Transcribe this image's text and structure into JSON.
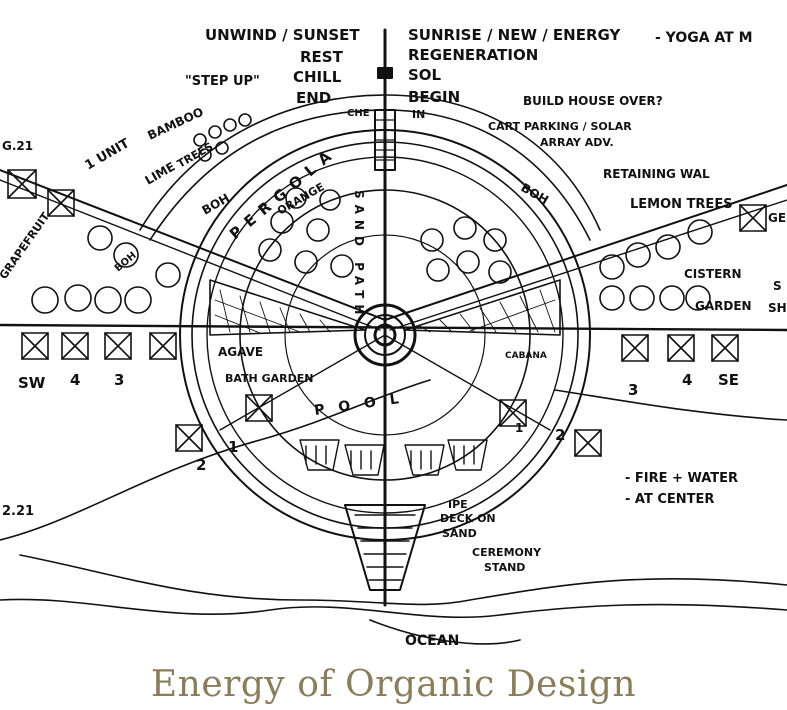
{
  "caption": "Energy of Organic Design",
  "labels": {
    "unwind": "UNWIND / SUNSET",
    "rest": "REST",
    "chill": "CHILL",
    "end": "END",
    "sunrise": "SUNRISE / NEW / ENERGY",
    "yoga": "- YOGA AT M",
    "regeneration": "REGENERATION",
    "sol": "SOL",
    "begin": "BEGIN",
    "in": "IN",
    "step_up": "\"STEP UP\"",
    "build_house": "BUILD HOUSE OVER?",
    "cart_parking": "CART PARKING / SOLAR",
    "array": "ARRAY ADV.",
    "retaining": "RETAINING WAL",
    "lemon": "LEMON TREES",
    "cistern": "CISTERN",
    "garden": "GARDEN",
    "bamboo": "BAMBOO",
    "lime": "LIME",
    "trees": "TREES",
    "grapefruit": "GRAPEFRUIT",
    "unit": "1 UNIT",
    "boh_left": "BOH",
    "boh_right": "BOH",
    "boh_small": "BOH",
    "pergola": "PERGOLA",
    "orange": "ORANGE",
    "sand_path": "SAND PATH",
    "che": "CHE",
    "agave": "AGAVE",
    "bath_garden": "BATH GARDEN",
    "cabana": "CABANA",
    "pool": "POOL",
    "ipe": "IPE",
    "deck_on": "DECK ON",
    "sand": "SAND",
    "ceremony": "CEREMONY",
    "stand": "STAND",
    "ocean": "OCEAN",
    "fire_water": "- FIRE + WATER",
    "at_center": "- AT CENTER",
    "sw": "SW",
    "se": "SE",
    "n_1": "1",
    "n_2": "2",
    "n_3": "3",
    "n_4": "4",
    "n_1b": "1",
    "n_2b": "2",
    "n_3b": "3",
    "n_4b": "4",
    "g21_top": "G.21",
    "g21_bottom": "2.21",
    "edge_ge": "GE",
    "edge_s": "S",
    "edge_sh": "SH"
  }
}
